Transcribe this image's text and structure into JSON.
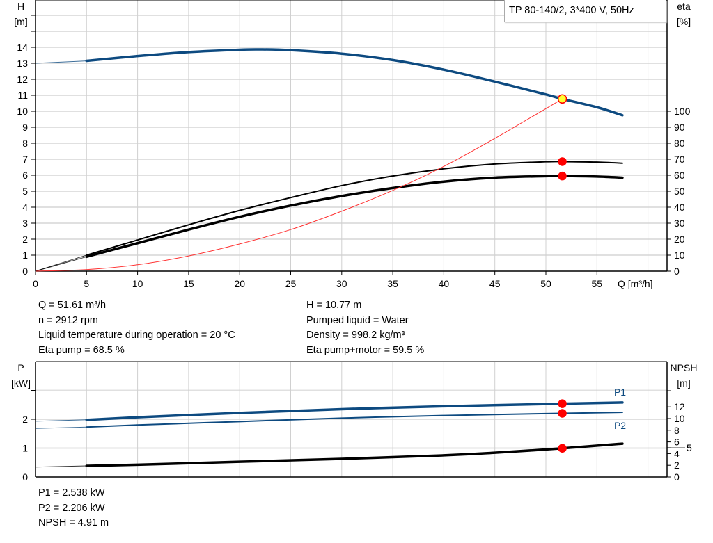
{
  "chart_data": [
    {
      "type": "line",
      "title": "TP 80-140/2, 3*400 V, 50Hz",
      "xlabel": "Q [m³/h]",
      "x_unit": "m³/h",
      "ylabel_left": {
        "name": "H",
        "unit": "[m]"
      },
      "ylabel_right": {
        "name": "eta",
        "unit": "[%]"
      },
      "xlim": [
        0,
        62
      ],
      "ylim_left": [
        0,
        16
      ],
      "ylim_right": [
        0,
        100
      ],
      "x_ticks": [
        "0",
        "5",
        "10",
        "15",
        "20",
        "25",
        "30",
        "35",
        "40",
        "45",
        "50",
        "55"
      ],
      "y_ticks_left": [
        "0",
        "1",
        "2",
        "3",
        "4",
        "5",
        "6",
        "7",
        "8",
        "9",
        "10",
        "11",
        "12",
        "13",
        "14"
      ],
      "y_ticks_right": [
        "0",
        "10",
        "20",
        "30",
        "40",
        "50",
        "60",
        "70",
        "80",
        "90",
        "100"
      ],
      "grid": true,
      "legend_placement": "top-right",
      "series": [
        {
          "axis": "left",
          "color": "#0d4a80",
          "width": 3.5,
          "x": [
            0,
            5,
            10,
            15,
            20,
            22,
            25,
            30,
            35,
            40,
            45,
            50,
            51.61,
            55,
            57.5
          ],
          "y": [
            13.0,
            13.15,
            13.45,
            13.7,
            13.85,
            13.87,
            13.82,
            13.6,
            13.2,
            12.6,
            11.85,
            11.05,
            10.77,
            10.25,
            9.75
          ]
        },
        {
          "axis": "right",
          "color": "#000000",
          "width": 2,
          "x": [
            0,
            5,
            10,
            15,
            20,
            25,
            30,
            35,
            40,
            45,
            50,
            51.61,
            55,
            57.5
          ],
          "y": [
            0,
            10,
            19.5,
            29,
            38,
            46,
            53.5,
            59.5,
            64,
            67,
            68.4,
            68.5,
            68.2,
            67.5
          ]
        },
        {
          "axis": "right",
          "color": "#000000",
          "width": 3.5,
          "x": [
            0,
            5,
            10,
            15,
            20,
            25,
            30,
            35,
            40,
            45,
            50,
            51.61,
            55,
            57.5
          ],
          "y": [
            0,
            9,
            17.5,
            26,
            34,
            41,
            47,
            52,
            56,
            58.5,
            59.4,
            59.5,
            59.2,
            58.5
          ]
        },
        {
          "axis": "left",
          "color": "#ff3030",
          "width": 1,
          "no_thin_start": true,
          "x": [
            0,
            5,
            10,
            15,
            20,
            25,
            30,
            35,
            40,
            45,
            51.61
          ],
          "y": [
            0,
            0.1,
            0.4,
            0.95,
            1.7,
            2.6,
            3.75,
            5.05,
            6.55,
            8.3,
            10.77
          ]
        }
      ],
      "duty_points": [
        {
          "axis": "left",
          "x": 51.61,
          "y": 10.77,
          "fill": "#ffff33",
          "stroke": "#ff0000"
        },
        {
          "axis": "right",
          "x": 51.61,
          "y": 68.5,
          "fill": "#ff0000",
          "stroke": "#ff0000"
        },
        {
          "axis": "right",
          "x": 51.61,
          "y": 59.5,
          "fill": "#ff0000",
          "stroke": "#ff0000"
        }
      ]
    },
    {
      "type": "line",
      "xlim": [
        0,
        62
      ],
      "ylabel_left": {
        "name": "P",
        "unit": "[kW]"
      },
      "ylabel_right": {
        "name": "NPSH",
        "unit": "[m]"
      },
      "ylim_left": [
        0,
        4
      ],
      "ylim_right": [
        0,
        19.75
      ],
      "y_ticks_left": [
        "0",
        "1",
        "2"
      ],
      "y_ticks_right": [
        "0",
        "2",
        "4",
        "5",
        "6",
        "8",
        "10",
        "12"
      ],
      "grid": true,
      "series": [
        {
          "name": "P1",
          "axis": "left",
          "color": "#0d4a80",
          "width": 3.5,
          "x": [
            0,
            5,
            10,
            20,
            30,
            40,
            51.61,
            57.5
          ],
          "y": [
            1.93,
            1.98,
            2.07,
            2.22,
            2.35,
            2.45,
            2.538,
            2.58
          ]
        },
        {
          "name": "P2",
          "axis": "left",
          "color": "#0d4a80",
          "width": 2,
          "x": [
            0,
            5,
            10,
            20,
            30,
            40,
            51.61,
            57.5
          ],
          "y": [
            1.68,
            1.73,
            1.8,
            1.92,
            2.04,
            2.13,
            2.206,
            2.24
          ]
        },
        {
          "axis": "right",
          "color": "#000000",
          "width": 3.5,
          "x": [
            0,
            5,
            10,
            20,
            30,
            40,
            45,
            51.61,
            57.5
          ],
          "y": [
            1.7,
            1.9,
            2.1,
            2.6,
            3.1,
            3.7,
            4.15,
            4.91,
            5.7
          ]
        }
      ],
      "duty_points": [
        {
          "axis": "left",
          "x": 51.61,
          "y": 2.538,
          "fill": "#ff0000",
          "stroke": "#ff0000"
        },
        {
          "axis": "left",
          "x": 51.61,
          "y": 2.206,
          "fill": "#ff0000",
          "stroke": "#ff0000"
        },
        {
          "axis": "right",
          "x": 51.61,
          "y": 4.91,
          "fill": "#ff0000",
          "stroke": "#ff0000"
        }
      ]
    }
  ],
  "info_top": {
    "left": [
      "Q = 51.61 m³/h",
      "n = 2912 rpm",
      "Liquid temperature during operation = 20 °C",
      "Eta pump = 68.5 %"
    ],
    "right": [
      "H = 10.77 m",
      "Pumped liquid = Water",
      "Density = 998.2 kg/m³",
      "Eta pump+motor = 59.5 %"
    ]
  },
  "info_bottom": [
    "P1 = 2.538 kW",
    "P2 = 2.206 kW",
    "NPSH = 4.91 m"
  ]
}
